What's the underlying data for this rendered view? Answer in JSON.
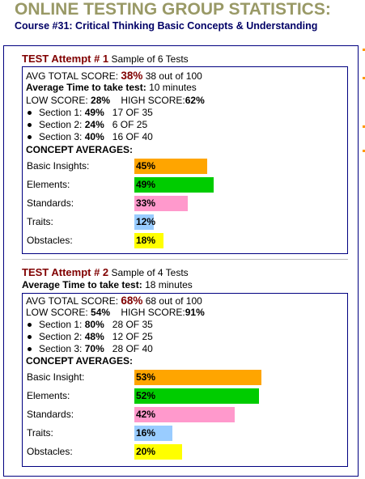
{
  "header": {
    "title": "ONLINE TESTING GROUP STATISTICS:",
    "course_label": "Course #31:",
    "course_name": "Critical Thinking Basic Concepts & Understanding"
  },
  "attempts": [
    {
      "heading": "TEST Attempt # 1",
      "sample": "Sample of 6 Tests",
      "avg_label": "AVG TOTAL SCORE:",
      "avg_pct": "38%",
      "avg_detail": "38 out of 100",
      "time_label": "Average Time to take test:",
      "time_value": "10 minutes",
      "low_label": "LOW SCORE:",
      "low_value": "28%",
      "high_label": "HIGH SCORE:",
      "high_value": "62%",
      "sections": [
        {
          "label": "Section 1:",
          "pct": "49%",
          "detail": "17 OF 35"
        },
        {
          "label": "Section 2:",
          "pct": "24%",
          "detail": "6 OF 25"
        },
        {
          "label": "Section 3:",
          "pct": "40%",
          "detail": "16 OF 40"
        }
      ],
      "concepts_title": "CONCEPT AVERAGES:",
      "concepts": [
        {
          "name": "Basic Insights:",
          "value": 45,
          "label": "45%",
          "color": "#ffa500"
        },
        {
          "name": "Elements:",
          "value": 49,
          "label": "49%",
          "color": "#00cc00"
        },
        {
          "name": "Standards:",
          "value": 33,
          "label": "33%",
          "color": "#ff99cc"
        },
        {
          "name": "Traits:",
          "value": 12,
          "label": "12%",
          "color": "#99ccff"
        },
        {
          "name": "Obstacles:",
          "value": 18,
          "label": "18%",
          "color": "#ffff00"
        }
      ]
    },
    {
      "heading": "TEST Attempt # 2",
      "sample": "Sample of 4 Tests",
      "avg_label": "AVG TOTAL SCORE:",
      "avg_pct": "68%",
      "avg_detail": "68 out of 100",
      "time_label": "Average Time to take test:",
      "time_value": "18 minutes",
      "low_label": "LOW SCORE:",
      "low_value": "54%",
      "high_label": "HIGH SCORE:",
      "high_value": "91%",
      "sections": [
        {
          "label": "Section 1:",
          "pct": "80%",
          "detail": "28 OF 35"
        },
        {
          "label": "Section 2:",
          "pct": "48%",
          "detail": "12 OF 25"
        },
        {
          "label": "Section 3:",
          "pct": "70%",
          "detail": "28 OF 40"
        }
      ],
      "concepts_title": "CONCEPT AVERAGES:",
      "concepts": [
        {
          "name": "Basic Insight:",
          "value": 53,
          "label": "53%",
          "color": "#ffa500"
        },
        {
          "name": "Elements:",
          "value": 52,
          "label": "52%",
          "color": "#00cc00"
        },
        {
          "name": "Standards:",
          "value": 42,
          "label": "42%",
          "color": "#ff99cc"
        },
        {
          "name": "Traits:",
          "value": 16,
          "label": "16%",
          "color": "#99ccff"
        },
        {
          "name": "Obstacles:",
          "value": 20,
          "label": "20%",
          "color": "#ffff00"
        }
      ]
    }
  ]
}
